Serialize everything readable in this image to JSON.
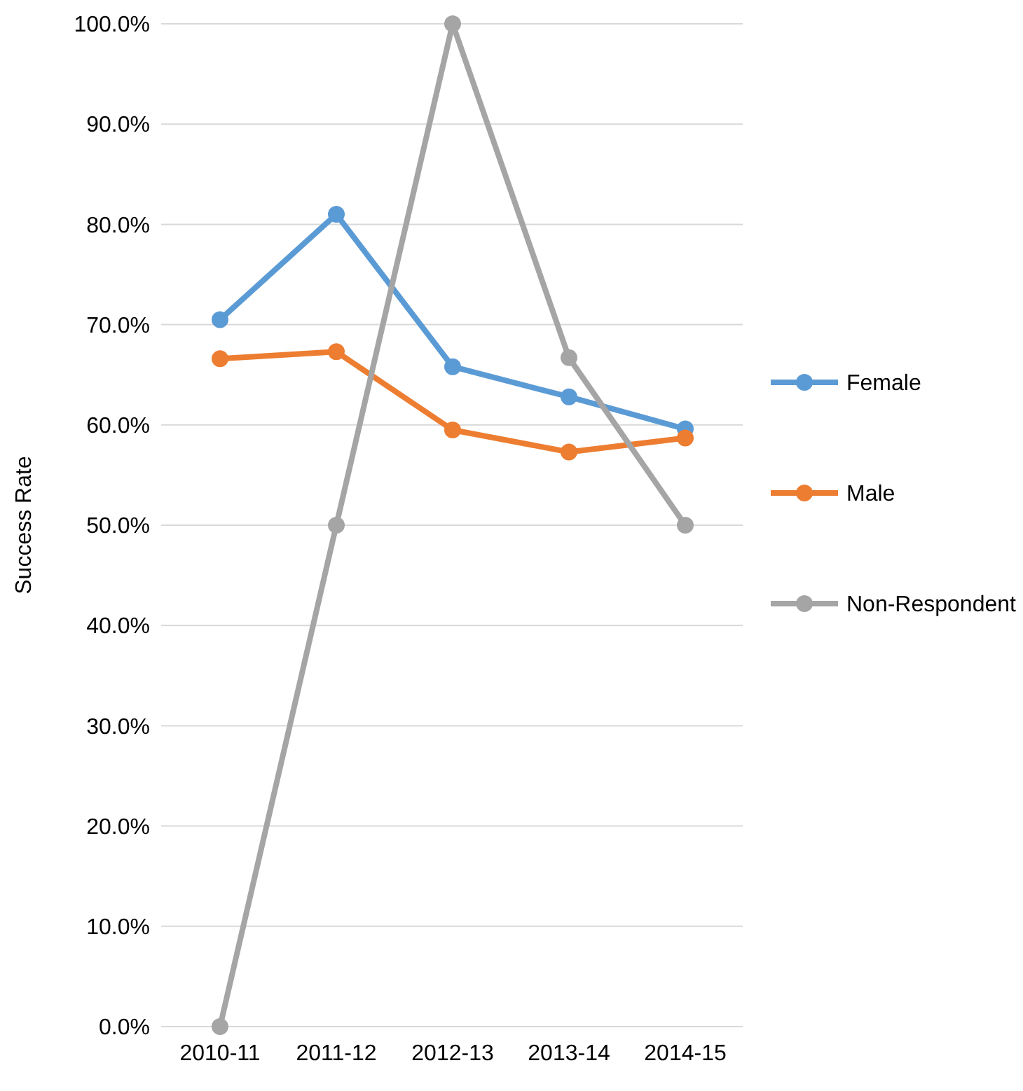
{
  "chart_data": {
    "type": "line",
    "ylabel": "Success Rate",
    "categories": [
      "2010-11",
      "2011-12",
      "2012-13",
      "2013-14",
      "2014-15"
    ],
    "series": [
      {
        "name": "Female",
        "color": "#5b9bd5",
        "values": [
          70.5,
          81.0,
          65.8,
          62.8,
          59.6
        ]
      },
      {
        "name": "Male",
        "color": "#ed7d31",
        "values": [
          66.6,
          67.3,
          59.5,
          57.3,
          58.7
        ]
      },
      {
        "name": "Non-Respondent",
        "color": "#a5a5a5",
        "values": [
          0,
          50,
          100,
          66.7,
          50
        ]
      }
    ],
    "ylim": [
      0,
      100
    ],
    "yticks": [
      {
        "value": 0,
        "label": "0.0%"
      },
      {
        "value": 10,
        "label": "10.0%"
      },
      {
        "value": 20,
        "label": "20.0%"
      },
      {
        "value": 30,
        "label": "30.0%"
      },
      {
        "value": 40,
        "label": "40.0%"
      },
      {
        "value": 50,
        "label": "50.0%"
      },
      {
        "value": 60,
        "label": "60.0%"
      },
      {
        "value": 70,
        "label": "70.0%"
      },
      {
        "value": 80,
        "label": "80.0%"
      },
      {
        "value": 90,
        "label": "90.0%"
      },
      {
        "value": 100,
        "label": "100.0%"
      }
    ],
    "grid": "y",
    "legend": "right",
    "marker": "circle",
    "line_style": "solid"
  }
}
